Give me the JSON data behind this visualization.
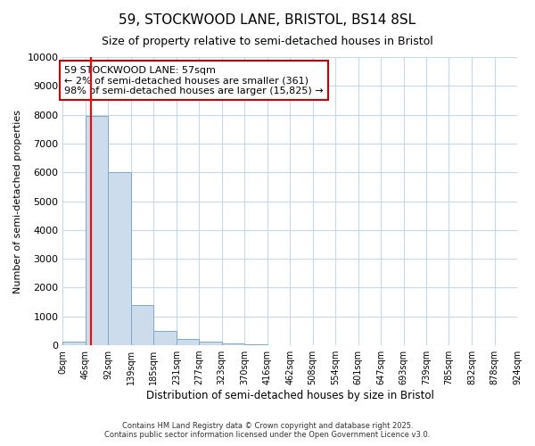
{
  "title": "59, STOCKWOOD LANE, BRISTOL, BS14 8SL",
  "subtitle": "Size of property relative to semi-detached houses in Bristol",
  "xlabel": "Distribution of semi-detached houses by size in Bristol",
  "ylabel": "Number of semi-detached properties",
  "bar_color": "#ccdcec",
  "bar_edge_color": "#7aaac8",
  "bin_edges": [
    0,
    46,
    92,
    139,
    185,
    231,
    277,
    323,
    370,
    416,
    462,
    508,
    554,
    601,
    647,
    693,
    739,
    785,
    832,
    878,
    924
  ],
  "bar_heights": [
    115,
    7950,
    6000,
    1400,
    500,
    210,
    115,
    70,
    40,
    8,
    4,
    2,
    1,
    1,
    0,
    0,
    0,
    0,
    0,
    0
  ],
  "red_line_x": 57,
  "ylim": [
    0,
    10000
  ],
  "yticks": [
    0,
    1000,
    2000,
    3000,
    4000,
    5000,
    6000,
    7000,
    8000,
    9000,
    10000
  ],
  "annotation_title": "59 STOCKWOOD LANE: 57sqm",
  "annotation_line1": "← 2% of semi-detached houses are smaller (361)",
  "annotation_line2": "98% of semi-detached houses are larger (15,825) →",
  "annotation_box_color": "#cc0000",
  "footer_line1": "Contains HM Land Registry data © Crown copyright and database right 2025.",
  "footer_line2": "Contains public sector information licensed under the Open Government Licence v3.0.",
  "background_color": "#ffffff",
  "plot_bg_color": "#ffffff",
  "grid_color": "#c8d8e8"
}
